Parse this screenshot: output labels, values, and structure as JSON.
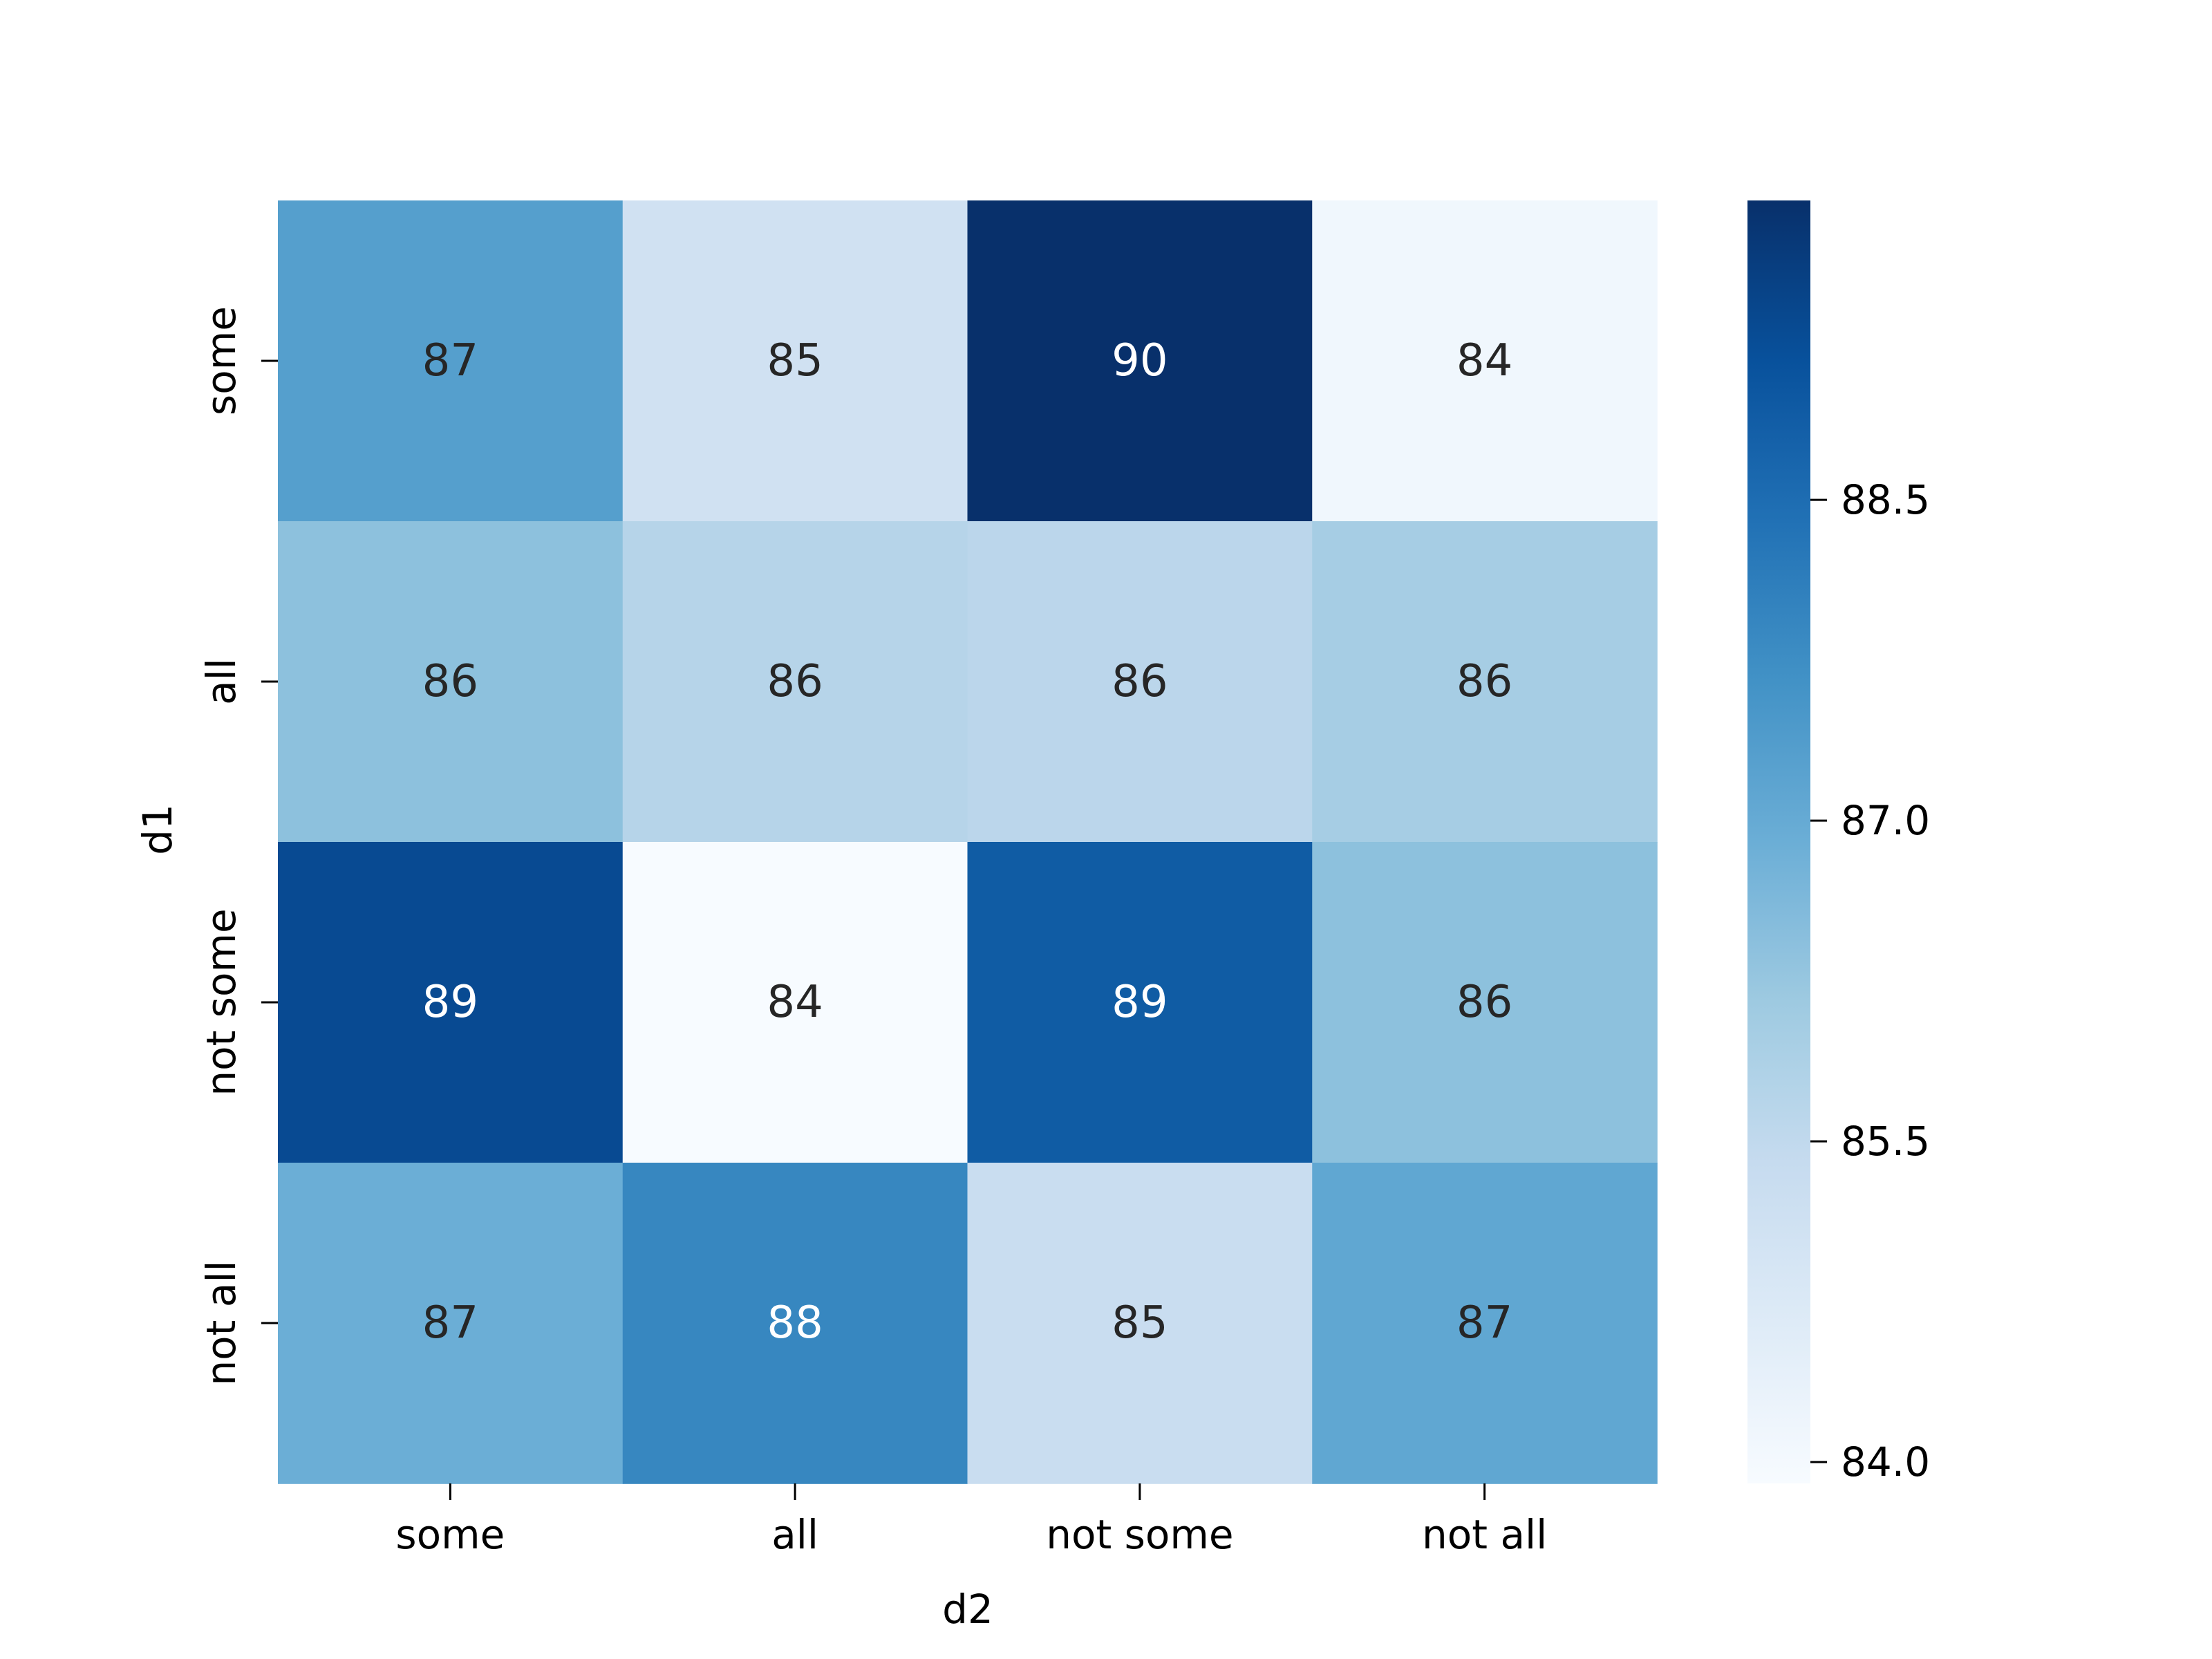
{
  "chart_data": {
    "type": "heatmap",
    "title": "",
    "xlabel": "d2",
    "ylabel": "d1",
    "x_categories": [
      "some",
      "all",
      "not some",
      "not all"
    ],
    "y_categories": [
      "some",
      "all",
      "not some",
      "not all"
    ],
    "values": [
      [
        87.3,
        85.1,
        89.9,
        84.1
      ],
      [
        86.4,
        85.7,
        85.6,
        86.0
      ],
      [
        89.3,
        83.9,
        88.9,
        86.4
      ],
      [
        86.9,
        87.9,
        85.3,
        87.1
      ]
    ],
    "labels": [
      [
        "87",
        "85",
        "90",
        "84"
      ],
      [
        "86",
        "86",
        "86",
        "86"
      ],
      [
        "89",
        "84",
        "89",
        "86"
      ],
      [
        "87",
        "88",
        "85",
        "87"
      ]
    ],
    "colormap": "Blues",
    "colorbar": {
      "range": [
        83.9,
        89.9
      ],
      "ticks": [
        84.0,
        85.5,
        87.0,
        88.5
      ],
      "tick_labels": [
        "84.0",
        "85.5",
        "87.0",
        "88.5"
      ]
    },
    "annotation_colors": {
      "dark": "#262626",
      "light": "#ffffff"
    }
  }
}
